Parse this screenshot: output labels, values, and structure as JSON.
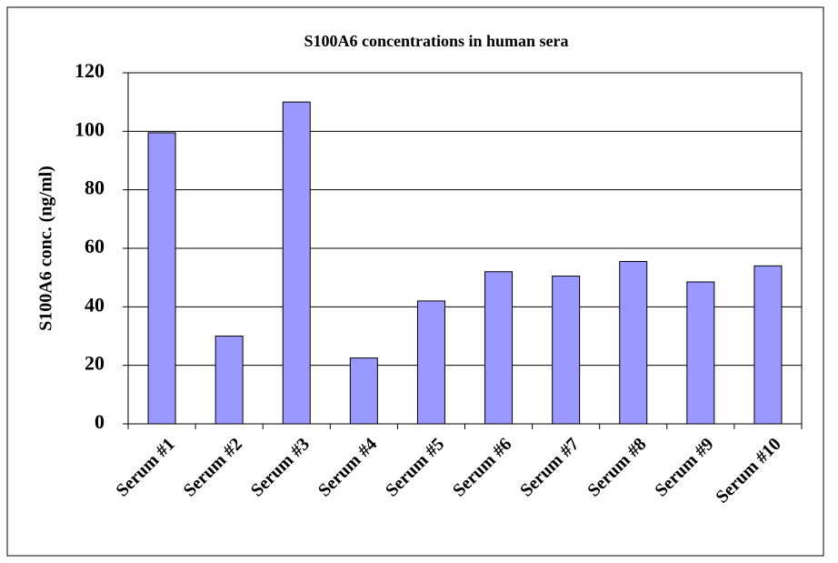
{
  "chart_data": {
    "type": "bar",
    "title": "S100A6 concentrations in human sera",
    "y_label": "S100A6 conc. (ng/ml)",
    "categories": [
      "Serum #1",
      "Serum #2",
      "Serum #3",
      "Serum #4",
      "Serum #5",
      "Serum #6",
      "Serum #7",
      "Serum #8",
      "Serum #9",
      "Serum #10"
    ],
    "values": [
      99.5,
      30,
      110,
      22.5,
      42,
      52,
      50.5,
      55.5,
      48.5,
      54
    ],
    "color": "#9999ff",
    "ylim": [
      0,
      120
    ],
    "yticks": [
      0,
      20,
      40,
      60,
      80,
      100,
      120
    ],
    "grid": true
  }
}
